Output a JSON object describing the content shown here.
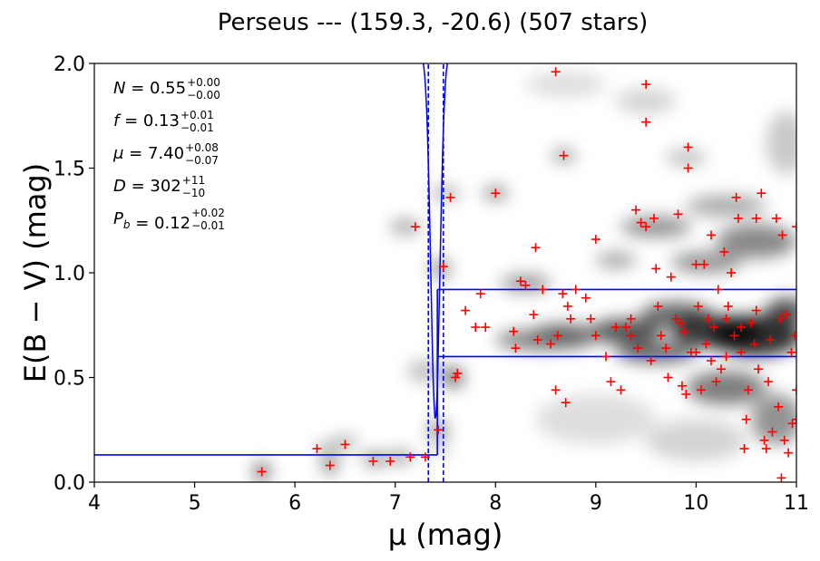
{
  "chart_data": {
    "type": "scatter",
    "title": "Perseus --- (159.3, -20.6) (507 stars)",
    "xlabel": "μ (mag)",
    "ylabel": "E(B − V) (mag)",
    "xlim": [
      4,
      11
    ],
    "ylim": [
      0,
      2
    ],
    "xticks": [
      "4",
      "5",
      "6",
      "7",
      "8",
      "9",
      "10",
      "11"
    ],
    "yticks": [
      "0.0",
      "0.5",
      "1.0",
      "1.5",
      "2.0"
    ],
    "annotations": [
      {
        "label": "N",
        "value": "0.55",
        "plus": "+0.00",
        "minus": "−0.00"
      },
      {
        "label": "f",
        "value": "0.13",
        "plus": "+0.01",
        "minus": "−0.01"
      },
      {
        "label": "μ",
        "value": "7.40",
        "plus": "+0.08",
        "minus": "−0.07"
      },
      {
        "label": "D",
        "value": "302",
        "plus": "+11",
        "minus": "−10"
      },
      {
        "label": "P_b",
        "value": "0.12",
        "plus": "+0.02",
        "minus": "−0.01"
      }
    ],
    "model_lines": {
      "color": "#0000ff",
      "foreground_level": 0.13,
      "cloud_distance": 7.4,
      "cloud_distance_bounds": [
        7.33,
        7.48
      ],
      "step_end": 7.42,
      "background_upper": 0.92,
      "background_lower": 0.6
    },
    "density_clumps": [
      [
        5.67,
        0.05,
        0.07,
        0.04,
        0.9
      ],
      [
        6.35,
        0.08,
        0.07,
        0.04,
        0.7
      ],
      [
        6.32,
        0.16,
        0.1,
        0.03,
        0.4
      ],
      [
        6.5,
        0.19,
        0.12,
        0.03,
        0.4
      ],
      [
        6.8,
        0.11,
        0.12,
        0.03,
        0.6
      ],
      [
        7.05,
        0.12,
        0.12,
        0.03,
        0.5
      ],
      [
        7.43,
        0.25,
        0.1,
        0.04,
        0.6
      ],
      [
        7.45,
        0.16,
        0.08,
        0.03,
        0.3
      ],
      [
        7.3,
        0.53,
        0.18,
        0.05,
        0.3
      ],
      [
        7.58,
        0.5,
        0.1,
        0.05,
        0.7
      ],
      [
        7.1,
        1.22,
        0.15,
        0.03,
        0.5
      ],
      [
        7.5,
        1.38,
        0.15,
        0.03,
        0.4
      ],
      [
        8.0,
        1.38,
        0.12,
        0.03,
        0.6
      ],
      [
        8.68,
        1.56,
        0.12,
        0.03,
        0.5
      ],
      [
        7.45,
        1.02,
        0.1,
        0.05,
        0.5
      ],
      [
        8.3,
        0.95,
        0.25,
        0.04,
        0.5
      ],
      [
        8.5,
        0.68,
        0.5,
        0.05,
        0.6
      ],
      [
        8.7,
        0.72,
        0.3,
        0.04,
        0.5
      ],
      [
        9.3,
        0.72,
        0.35,
        0.06,
        0.8
      ],
      [
        9.6,
        0.62,
        0.4,
        0.05,
        0.7
      ],
      [
        9.8,
        0.8,
        0.35,
        0.06,
        0.7
      ],
      [
        10.2,
        0.72,
        0.45,
        0.08,
        0.9
      ],
      [
        10.6,
        0.7,
        0.45,
        0.1,
        0.95
      ],
      [
        10.9,
        0.82,
        0.2,
        0.06,
        0.8
      ],
      [
        10.3,
        0.45,
        0.4,
        0.08,
        0.6
      ],
      [
        10.8,
        0.3,
        0.25,
        0.12,
        0.5
      ],
      [
        9.6,
        1.22,
        0.35,
        0.05,
        0.5
      ],
      [
        10.1,
        1.05,
        0.35,
        0.05,
        0.5
      ],
      [
        10.6,
        1.15,
        0.4,
        0.08,
        0.55
      ],
      [
        10.3,
        1.32,
        0.4,
        0.05,
        0.4
      ],
      [
        9.2,
        1.06,
        0.2,
        0.04,
        0.4
      ],
      [
        9.9,
        1.55,
        0.2,
        0.04,
        0.3
      ],
      [
        9.5,
        1.82,
        0.3,
        0.06,
        0.2
      ],
      [
        10.9,
        1.62,
        0.2,
        0.15,
        0.25
      ],
      [
        8.7,
        1.9,
        0.4,
        0.06,
        0.15
      ],
      [
        9.0,
        0.3,
        0.6,
        0.12,
        0.15
      ],
      [
        10.0,
        0.2,
        0.5,
        0.1,
        0.2
      ]
    ],
    "stars": [
      [
        5.67,
        0.05
      ],
      [
        6.22,
        0.16
      ],
      [
        6.35,
        0.08
      ],
      [
        6.5,
        0.18
      ],
      [
        6.78,
        0.1
      ],
      [
        6.95,
        0.1
      ],
      [
        7.15,
        0.12
      ],
      [
        7.3,
        0.12
      ],
      [
        7.43,
        0.25
      ],
      [
        7.2,
        1.22
      ],
      [
        7.55,
        1.36
      ],
      [
        7.48,
        1.03
      ],
      [
        7.6,
        0.5
      ],
      [
        7.62,
        0.52
      ],
      [
        7.7,
        0.82
      ],
      [
        7.8,
        0.74
      ],
      [
        7.85,
        0.9
      ],
      [
        7.9,
        0.74
      ],
      [
        8.0,
        1.38
      ],
      [
        8.18,
        0.72
      ],
      [
        8.2,
        0.64
      ],
      [
        8.25,
        0.96
      ],
      [
        8.3,
        0.94
      ],
      [
        8.38,
        0.8
      ],
      [
        8.4,
        1.12
      ],
      [
        8.42,
        0.68
      ],
      [
        8.47,
        0.92
      ],
      [
        8.55,
        0.66
      ],
      [
        8.6,
        0.44
      ],
      [
        8.62,
        0.7
      ],
      [
        8.67,
        0.9
      ],
      [
        8.7,
        0.38
      ],
      [
        8.72,
        0.84
      ],
      [
        8.75,
        0.78
      ],
      [
        8.8,
        0.92
      ],
      [
        8.6,
        1.96
      ],
      [
        8.68,
        1.56
      ],
      [
        8.95,
        0.78
      ],
      [
        9.0,
        0.7
      ],
      [
        9.0,
        1.16
      ],
      [
        9.15,
        0.48
      ],
      [
        9.2,
        0.74
      ],
      [
        9.3,
        0.74
      ],
      [
        9.25,
        0.44
      ],
      [
        9.35,
        0.7
      ],
      [
        9.4,
        1.3
      ],
      [
        9.42,
        0.64
      ],
      [
        9.45,
        1.24
      ],
      [
        9.5,
        1.22
      ],
      [
        9.5,
        1.9
      ],
      [
        9.5,
        1.72
      ],
      [
        9.55,
        0.58
      ],
      [
        9.58,
        1.26
      ],
      [
        9.6,
        1.02
      ],
      [
        9.62,
        0.84
      ],
      [
        9.65,
        0.7
      ],
      [
        9.7,
        0.64
      ],
      [
        9.72,
        0.5
      ],
      [
        9.75,
        0.98
      ],
      [
        9.8,
        0.78
      ],
      [
        9.82,
        1.28
      ],
      [
        9.86,
        0.46
      ],
      [
        9.88,
        0.72
      ],
      [
        9.9,
        0.42
      ],
      [
        9.92,
        1.6
      ],
      [
        9.92,
        1.5
      ],
      [
        9.95,
        0.62
      ],
      [
        10.0,
        1.04
      ],
      [
        10.02,
        0.84
      ],
      [
        10.05,
        0.44
      ],
      [
        10.08,
        1.04
      ],
      [
        10.1,
        0.66
      ],
      [
        10.12,
        0.78
      ],
      [
        10.15,
        1.18
      ],
      [
        10.18,
        0.74
      ],
      [
        10.2,
        0.48
      ],
      [
        10.22,
        0.92
      ],
      [
        10.25,
        0.54
      ],
      [
        10.28,
        1.1
      ],
      [
        10.3,
        0.6
      ],
      [
        10.32,
        0.84
      ],
      [
        10.35,
        1.0
      ],
      [
        10.38,
        0.7
      ],
      [
        10.4,
        1.36
      ],
      [
        10.42,
        1.26
      ],
      [
        10.45,
        0.62
      ],
      [
        10.48,
        0.16
      ],
      [
        10.5,
        0.3
      ],
      [
        10.52,
        0.44
      ],
      [
        10.55,
        0.76
      ],
      [
        10.58,
        0.66
      ],
      [
        10.6,
        1.26
      ],
      [
        10.62,
        0.54
      ],
      [
        10.65,
        1.38
      ],
      [
        10.68,
        0.2
      ],
      [
        10.7,
        0.16
      ],
      [
        10.72,
        0.48
      ],
      [
        10.74,
        0.68
      ],
      [
        10.76,
        0.24
      ],
      [
        10.8,
        1.26
      ],
      [
        10.82,
        0.36
      ],
      [
        10.84,
        0.78
      ],
      [
        10.85,
        0.02
      ],
      [
        10.86,
        1.18
      ],
      [
        10.88,
        0.2
      ],
      [
        10.9,
        0.8
      ],
      [
        10.92,
        0.14
      ],
      [
        10.95,
        0.62
      ],
      [
        10.96,
        0.28
      ],
      [
        10.98,
        0.7
      ],
      [
        11.0,
        1.22
      ],
      [
        11.0,
        0.3
      ],
      [
        11.0,
        0.44
      ],
      [
        9.85,
        0.76
      ],
      [
        10.15,
        0.58
      ],
      [
        10.45,
        0.74
      ],
      [
        9.35,
        0.78
      ],
      [
        8.9,
        0.88
      ],
      [
        9.1,
        0.6
      ],
      [
        10.0,
        0.62
      ],
      [
        10.3,
        0.78
      ],
      [
        10.6,
        0.82
      ]
    ],
    "star_color": "#ff0000",
    "grid": false
  }
}
